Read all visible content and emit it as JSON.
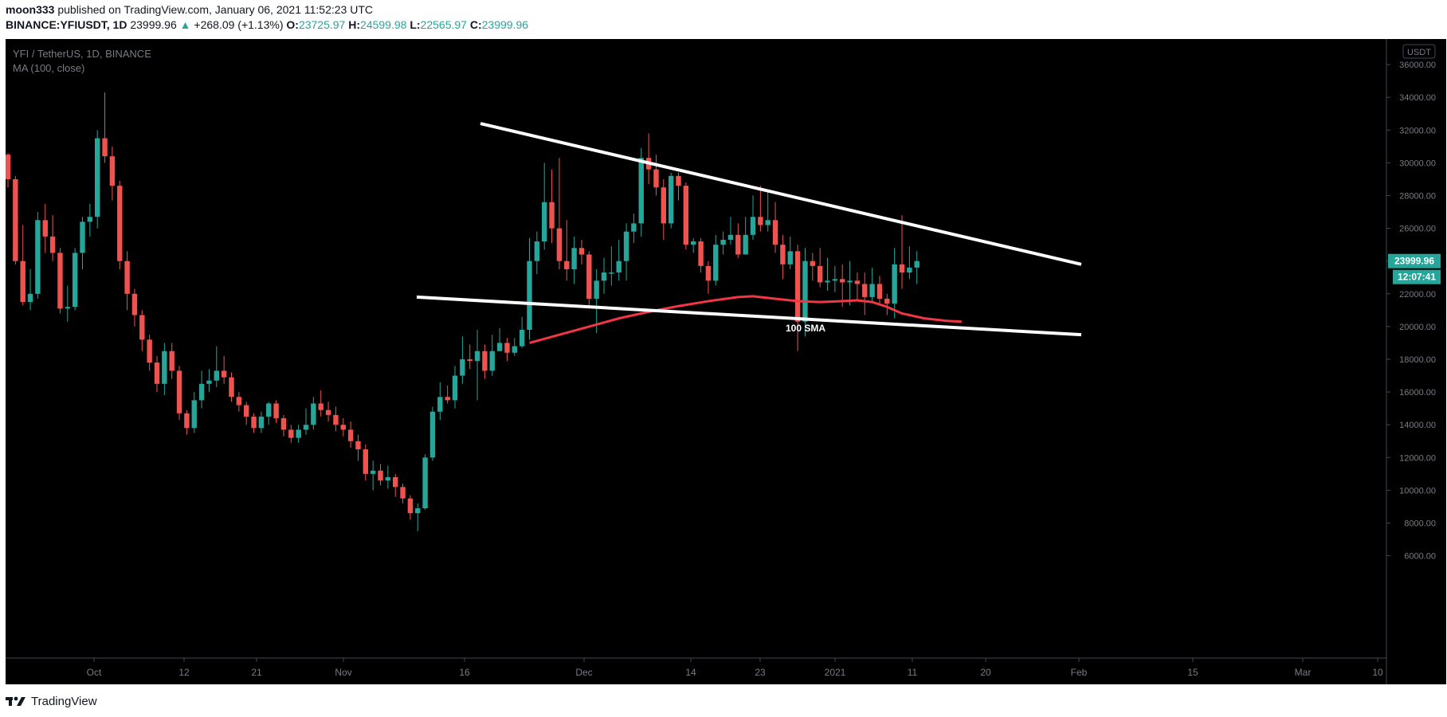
{
  "header": {
    "author": "moon333",
    "published_text": "published on TradingView.com, January 06, 2021 11:52:23 UTC",
    "symbol": "BINANCE:YFIUSDT, 1D",
    "last_price": "23999.96",
    "change_arrow": "▲",
    "change": "+268.09 (+1.13%)",
    "o_label": "O:",
    "o_value": "23725.97",
    "h_label": "H:",
    "h_value": "24599.98",
    "l_label": "L:",
    "l_value": "22565.97",
    "c_label": "C:",
    "c_value": "23999.96"
  },
  "chart_data": {
    "type": "candlestick",
    "title": "YFI / TetherUS, 1D, BINANCE",
    "indicator": "MA (100, close)",
    "currency_badge": "USDT",
    "ylim": [
      5000,
      37000
    ],
    "y_ticks": [
      "36000.00",
      "34000.00",
      "32000.00",
      "30000.00",
      "28000.00",
      "26000.00",
      "24000.00",
      "22000.00",
      "20000.00",
      "18000.00",
      "16000.00",
      "14000.00",
      "12000.00",
      "10000.00",
      "8000.00",
      "6000.00"
    ],
    "x_ticks": [
      "Oct",
      "12",
      "21",
      "Nov",
      "16",
      "Dec",
      "14",
      "23",
      "2021",
      "11",
      "20",
      "Feb",
      "15",
      "Mar",
      "10"
    ],
    "price_label": "23999.96",
    "countdown_label": "12:07:41",
    "annotation": "100 SMA",
    "colors": {
      "up": "#26a69a",
      "down": "#ef5350",
      "ma": "#f23645",
      "trendline": "#ffffff",
      "background": "#000000"
    },
    "candles": [
      [
        30500,
        29000,
        30600,
        28500
      ],
      [
        29000,
        24000,
        29200,
        23800
      ],
      [
        24000,
        21500,
        26200,
        21300
      ],
      [
        21500,
        22000,
        23500,
        21000
      ],
      [
        22000,
        26500,
        27000,
        21700
      ],
      [
        26500,
        25500,
        27500,
        24500
      ],
      [
        25500,
        24500,
        26800,
        24000
      ],
      [
        24500,
        21100,
        24800,
        20800
      ],
      [
        21100,
        21200,
        22500,
        20300
      ],
      [
        21200,
        24500,
        24800,
        21000
      ],
      [
        24500,
        26400,
        26700,
        23500
      ],
      [
        26400,
        26700,
        27500,
        25500
      ],
      [
        26700,
        31500,
        32000,
        26000
      ],
      [
        31500,
        30400,
        34300,
        30000
      ],
      [
        30400,
        28600,
        31000,
        27700
      ],
      [
        28600,
        24000,
        28900,
        23500
      ],
      [
        24000,
        22000,
        24600,
        21000
      ],
      [
        22000,
        20700,
        22300,
        20000
      ],
      [
        20700,
        19200,
        21000,
        18500
      ],
      [
        19200,
        17800,
        19500,
        17300
      ],
      [
        17800,
        16500,
        18200,
        16000
      ],
      [
        16500,
        18500,
        19000,
        15800
      ],
      [
        18500,
        17300,
        19000,
        16800
      ],
      [
        17300,
        14700,
        17600,
        14300
      ],
      [
        14700,
        13800,
        14900,
        13400
      ],
      [
        13800,
        15500,
        16000,
        13500
      ],
      [
        15500,
        16500,
        17300,
        15000
      ],
      [
        16500,
        16700,
        17400,
        16000
      ],
      [
        16700,
        17300,
        18800,
        16300
      ],
      [
        17300,
        16900,
        18200,
        16500
      ],
      [
        16900,
        15700,
        17200,
        15400
      ],
      [
        15700,
        15200,
        16000,
        14800
      ],
      [
        15200,
        14500,
        15400,
        14000
      ],
      [
        14500,
        13800,
        14700,
        13500
      ],
      [
        13800,
        14500,
        14800,
        13500
      ],
      [
        14500,
        15300,
        15400,
        14000
      ],
      [
        15300,
        14400,
        15500,
        14100
      ],
      [
        14400,
        13700,
        14600,
        13300
      ],
      [
        13700,
        13200,
        14000,
        12900
      ],
      [
        13200,
        13700,
        14000,
        12900
      ],
      [
        13700,
        14000,
        15000,
        13400
      ],
      [
        14000,
        15300,
        15700,
        13700
      ],
      [
        15300,
        14900,
        16100,
        14500
      ],
      [
        14900,
        14600,
        15400,
        14200
      ],
      [
        14600,
        14000,
        15100,
        13600
      ],
      [
        14000,
        13700,
        14400,
        13300
      ],
      [
        13700,
        13000,
        14200,
        12600
      ],
      [
        13000,
        12500,
        13400,
        11800
      ],
      [
        12500,
        11000,
        12800,
        10600
      ],
      [
        11000,
        11200,
        11800,
        10000
      ],
      [
        11200,
        10600,
        11600,
        10300
      ],
      [
        10600,
        10800,
        11500,
        10100
      ],
      [
        10800,
        10200,
        11000,
        9600
      ],
      [
        10200,
        9500,
        10400,
        9200
      ],
      [
        9500,
        8600,
        9700,
        8200
      ],
      [
        8600,
        8900,
        9200,
        7500
      ],
      [
        8900,
        12000,
        12200,
        8800
      ],
      [
        12000,
        14800,
        15100,
        11800
      ],
      [
        14800,
        15700,
        16600,
        14300
      ],
      [
        15700,
        15500,
        16400,
        15300
      ],
      [
        15500,
        17000,
        17600,
        15000
      ],
      [
        17000,
        18000,
        19400,
        16500
      ],
      [
        18000,
        17900,
        18900,
        17400
      ],
      [
        17900,
        18500,
        19800,
        15500
      ],
      [
        18500,
        17300,
        18900,
        16800
      ],
      [
        17300,
        18500,
        19500,
        17000
      ],
      [
        18500,
        19000,
        19900,
        18700
      ],
      [
        19000,
        18400,
        19300,
        17900
      ],
      [
        18400,
        18800,
        19300,
        18200
      ],
      [
        18800,
        19800,
        20600,
        18700
      ],
      [
        19800,
        24000,
        25400,
        19200
      ],
      [
        24000,
        25200,
        25800,
        23200
      ],
      [
        25200,
        27600,
        30000,
        24700
      ],
      [
        27600,
        26000,
        29600,
        25100
      ],
      [
        26000,
        24000,
        30300,
        23500
      ],
      [
        24000,
        23500,
        26500,
        22800
      ],
      [
        23500,
        24800,
        25500,
        22600
      ],
      [
        24800,
        24400,
        25300,
        23800
      ],
      [
        24400,
        21700,
        24600,
        21200
      ],
      [
        21700,
        22800,
        23500,
        19600
      ],
      [
        22800,
        23300,
        24200,
        22000
      ],
      [
        23300,
        23300,
        24900,
        22500
      ],
      [
        23300,
        24000,
        25300,
        22800
      ],
      [
        24000,
        25800,
        26300,
        22800
      ],
      [
        25800,
        26300,
        26900,
        25100
      ],
      [
        26300,
        30300,
        30900,
        25500
      ],
      [
        30300,
        29600,
        31800,
        28700
      ],
      [
        29600,
        28500,
        30500,
        28000
      ],
      [
        28500,
        26300,
        29000,
        25300
      ],
      [
        26300,
        29200,
        29400,
        26000
      ],
      [
        29200,
        28600,
        29400,
        27700
      ],
      [
        28600,
        25000,
        28800,
        24700
      ],
      [
        25000,
        25200,
        25400,
        24500
      ],
      [
        25200,
        23700,
        25400,
        23300
      ],
      [
        23700,
        22800,
        24000,
        22000
      ],
      [
        22800,
        25000,
        25600,
        22500
      ],
      [
        25000,
        25300,
        25800,
        24400
      ],
      [
        25300,
        25600,
        26700,
        25000
      ],
      [
        25600,
        24400,
        26300,
        24200
      ],
      [
        24400,
        25600,
        26700,
        25200
      ],
      [
        25600,
        26700,
        28000,
        25300
      ],
      [
        26700,
        26200,
        28600,
        25800
      ],
      [
        26200,
        26500,
        28300,
        25800
      ],
      [
        26500,
        25000,
        27600,
        24500
      ],
      [
        25000,
        23800,
        25600,
        22900
      ],
      [
        23800,
        24600,
        25500,
        23500
      ],
      [
        24600,
        20300,
        25000,
        18500
      ],
      [
        20300,
        24000,
        24800,
        19400
      ],
      [
        24000,
        23700,
        24500,
        22800
      ],
      [
        23700,
        22700,
        24800,
        22400
      ],
      [
        22700,
        22800,
        24200,
        22200
      ],
      [
        22800,
        22900,
        23700,
        22100
      ],
      [
        22900,
        22700,
        23800,
        21200
      ],
      [
        22700,
        22800,
        24000,
        21300
      ],
      [
        22800,
        22600,
        23300,
        21600
      ],
      [
        22600,
        21800,
        23300,
        20700
      ],
      [
        21800,
        22600,
        23600,
        21500
      ],
      [
        22600,
        21700,
        23100,
        21400
      ],
      [
        21700,
        21400,
        22000,
        20700
      ],
      [
        21400,
        23800,
        24800,
        20500
      ],
      [
        23800,
        23300,
        26800,
        22300
      ],
      [
        23300,
        23600,
        24900,
        22900
      ],
      [
        23600,
        24000,
        24600,
        22600
      ]
    ],
    "trendlines": [
      {
        "from": [
          "Nov 16",
          32400
        ],
        "to": [
          "Feb 01",
          23800
        ]
      },
      {
        "from": [
          "Nov 10",
          21800
        ],
        "to": [
          "Feb 01",
          19500
        ]
      }
    ],
    "ma_100": [
      [
        70,
        19000
      ],
      [
        74,
        19500
      ],
      [
        78,
        20000
      ],
      [
        82,
        20500
      ],
      [
        86,
        20900
      ],
      [
        90,
        21250
      ],
      [
        94,
        21550
      ],
      [
        98,
        21800
      ],
      [
        100,
        21850
      ],
      [
        103,
        21700
      ],
      [
        106,
        21550
      ],
      [
        109,
        21500
      ],
      [
        112,
        21550
      ],
      [
        114,
        21600
      ],
      [
        116,
        21500
      ],
      [
        118,
        21200
      ],
      [
        120,
        20800
      ],
      [
        123,
        20500
      ],
      [
        126,
        20350
      ],
      [
        128,
        20300
      ]
    ]
  },
  "footer": {
    "brand": "TradingView"
  }
}
